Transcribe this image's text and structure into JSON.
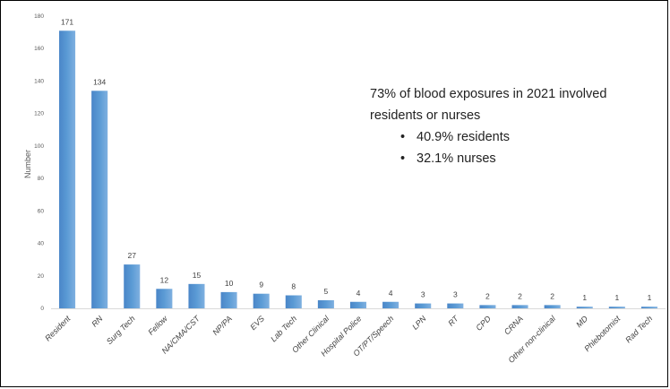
{
  "chart_data": {
    "type": "bar",
    "ylabel": "Number",
    "ylim": [
      0,
      180
    ],
    "yticks": [
      0,
      20,
      40,
      60,
      80,
      100,
      120,
      140,
      160,
      180
    ],
    "grid": false,
    "bar_color": "#5b9bd5",
    "categories": [
      "Resident",
      "RN",
      "Surg Tech",
      "Fellow",
      "NA/CMA/CST",
      "NP/PA",
      "EVS",
      "Lab Tech",
      "Other Clinical",
      "Hospital Police",
      "OT/PT/Speech",
      "LPN",
      "RT",
      "CPD",
      "CRNA",
      "Other non-clinical",
      "MD",
      "Phlebotomist",
      "Rad Tech"
    ],
    "values": [
      171,
      134,
      27,
      12,
      15,
      10,
      9,
      8,
      5,
      4,
      4,
      3,
      3,
      2,
      2,
      2,
      1,
      1,
      1
    ]
  },
  "annotation": {
    "text": "73% of blood exposures in 2021 involved residents or nurses",
    "bullets": [
      "40.9% residents",
      "32.1% nurses"
    ]
  }
}
